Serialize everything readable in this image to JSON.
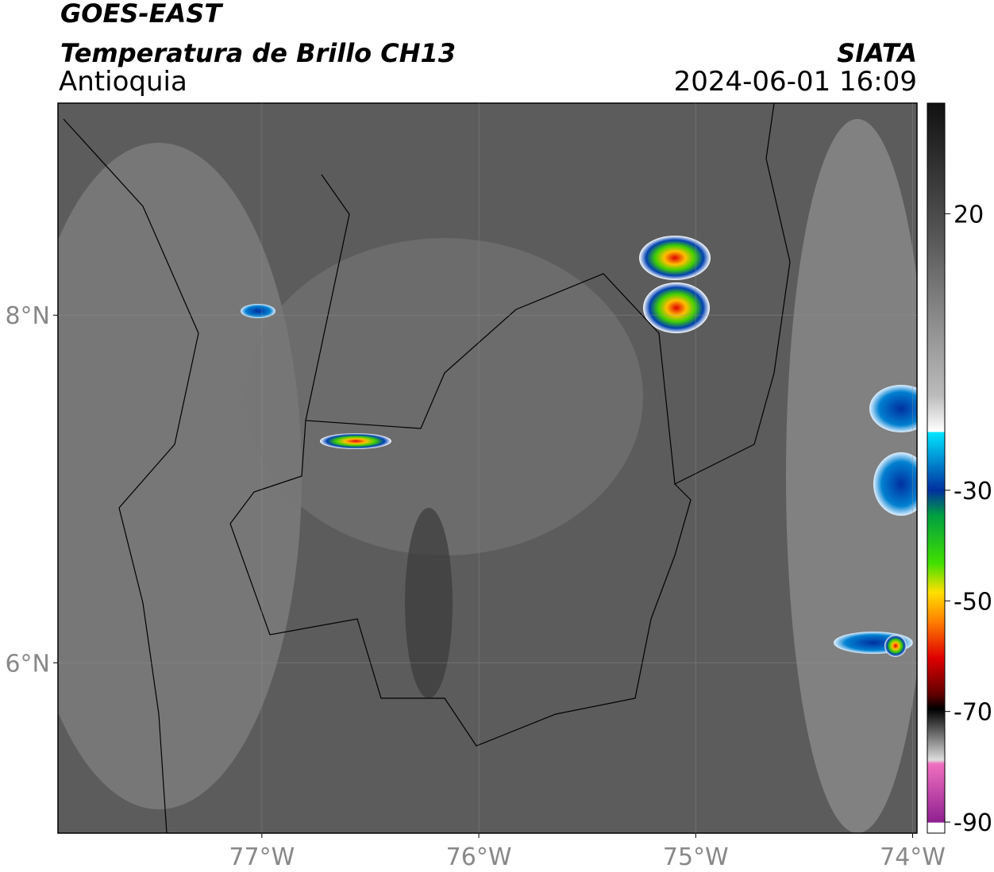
{
  "header": {
    "title": "GOES-EAST",
    "subtitle": "Temperatura de Brillo CH13",
    "region": "Antioquia",
    "source": "SIATA",
    "datetime": "2024-06-01 16:09"
  },
  "map": {
    "xlim": [
      -77.94,
      -73.98
    ],
    "ylim": [
      5.02,
      9.22
    ],
    "xticks": [
      {
        "value": -77,
        "label": "77°W"
      },
      {
        "value": -76,
        "label": "76°W"
      },
      {
        "value": -75,
        "label": "75°W"
      },
      {
        "value": -74,
        "label": "74°W"
      }
    ],
    "yticks": [
      {
        "value": 6,
        "label": "6°N"
      },
      {
        "value": 8,
        "label": "8°N"
      }
    ]
  },
  "colorbar": {
    "lim": [
      -92,
      40
    ],
    "ticks": [
      -90,
      -70,
      -50,
      -30,
      20
    ]
  }
}
